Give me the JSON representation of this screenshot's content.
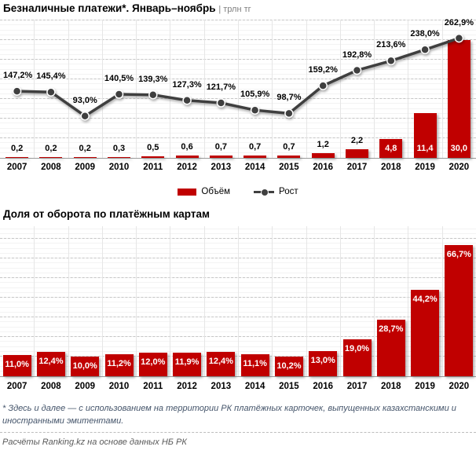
{
  "titles": {
    "chart1": "Безналичные платежи*. Январь–ноябрь",
    "chart1_separator": "| ",
    "chart1_unit": "трлн тг",
    "chart2": "Доля от оборота по платёжным картам"
  },
  "legend": {
    "volume_label": "Объём",
    "growth_label": "Рост"
  },
  "footnote": "* Здесь и далее — с использованием на территории РК платёжных карточек, выпущенных казахстанскими и иностранными эмитентами.",
  "source": "Расчёты Ranking.kz на основе данных НБ РК",
  "colors": {
    "bar": "#c00000",
    "line": "#3f3f3f",
    "label_inside": "#ffffff",
    "label_outside": "#000000",
    "footnote": "#44546a",
    "source": "#595959"
  },
  "chart_data": [
    {
      "type": "bar",
      "subtype": "bar+line-dual-axis",
      "title": "Безналичные платежи*. Январь–ноябрь",
      "unit": "трлн тг",
      "categories": [
        "2007",
        "2008",
        "2009",
        "2010",
        "2011",
        "2012",
        "2013",
        "2014",
        "2015",
        "2016",
        "2017",
        "2018",
        "2019",
        "2020"
      ],
      "series": [
        {
          "name": "Объём",
          "type": "bar",
          "color": "#c00000",
          "values": [
            0.2,
            0.2,
            0.2,
            0.3,
            0.5,
            0.6,
            0.7,
            0.7,
            0.7,
            1.2,
            2.2,
            4.8,
            11.4,
            30.0
          ],
          "labels": [
            "0,2",
            "0,2",
            "0,2",
            "0,3",
            "0,5",
            "0,6",
            "0,7",
            "0,7",
            "0,7",
            "1,2",
            "2,2",
            "4,8",
            "11,4",
            "30,0"
          ],
          "ylim": [
            0,
            35.4
          ]
        },
        {
          "name": "Рост",
          "type": "line",
          "color": "#3f3f3f",
          "values": [
            147.2,
            145.4,
            93.0,
            140.5,
            139.3,
            127.3,
            121.7,
            105.9,
            98.7,
            159.2,
            192.8,
            213.6,
            238.0,
            262.9
          ],
          "labels": [
            "147,2%",
            "145,4%",
            "93,0%",
            "140,5%",
            "139,3%",
            "127,3%",
            "121,7%",
            "105,9%",
            "98,7%",
            "159,2%",
            "192,8%",
            "213,6%",
            "238,0%",
            "262,9%"
          ],
          "ylim": [
            0,
            303.4
          ]
        }
      ],
      "grid": true,
      "legend_position": "bottom"
    },
    {
      "type": "bar",
      "title": "Доля от оборота по платёжным картам",
      "categories": [
        "2007",
        "2008",
        "2009",
        "2010",
        "2011",
        "2012",
        "2013",
        "2014",
        "2015",
        "2016",
        "2017",
        "2018",
        "2019",
        "2020"
      ],
      "series": [
        {
          "name": "Доля",
          "type": "bar",
          "color": "#c00000",
          "values": [
            11.0,
            12.4,
            10.0,
            11.2,
            12.0,
            11.9,
            12.4,
            11.1,
            10.2,
            13.0,
            19.0,
            28.7,
            44.2,
            66.7
          ],
          "labels": [
            "11,0%",
            "12,4%",
            "10,0%",
            "11,2%",
            "12,0%",
            "11,9%",
            "12,4%",
            "11,1%",
            "10,2%",
            "13,0%",
            "19,0%",
            "28,7%",
            "44,2%",
            "66,7%"
          ],
          "ylim": [
            0,
            76.8
          ]
        }
      ],
      "grid": true,
      "legend_position": "none"
    }
  ]
}
